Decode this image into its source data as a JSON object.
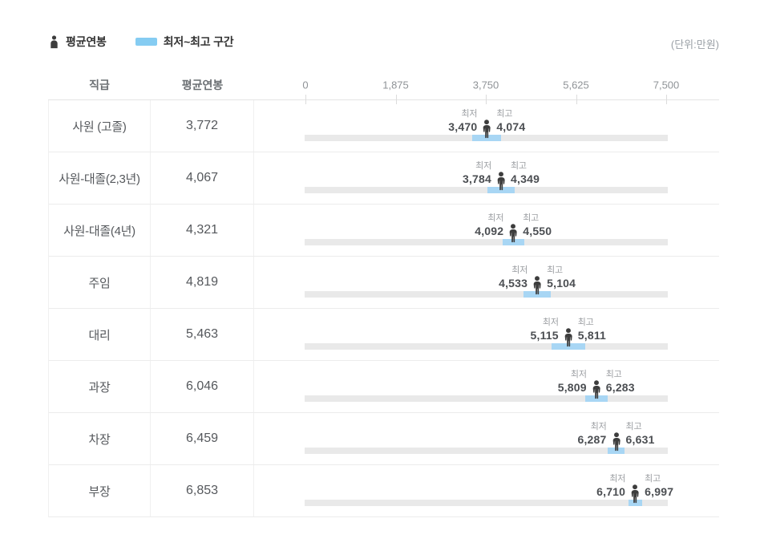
{
  "legend": {
    "avg_label": "평균연봉",
    "range_label": "최저~최고 구간"
  },
  "unit_note": "(단위:만원)",
  "table": {
    "col_position": "직급",
    "col_avg": "평균연봉",
    "min_label": "최저",
    "max_label": "최고"
  },
  "colors": {
    "legend_swatch": "#85ccf2",
    "range_fill": "#a8d6f4",
    "track": "#e9e9e9",
    "person": "#3d3d3d",
    "tick": "#dcdcdc"
  },
  "chart_data": {
    "type": "bar",
    "variant": "horizontal-range-bar-with-average-marker",
    "unit": "만원",
    "legend": [
      "평균연봉",
      "최저~최고 구간"
    ],
    "xlim": [
      0,
      7500
    ],
    "x_ticks": [
      0,
      1875,
      3750,
      5625,
      7500
    ],
    "grid": false,
    "categories": [
      "사원 (고졸)",
      "사원-대졸(2,3년)",
      "사원-대졸(4년)",
      "주임",
      "대리",
      "과장",
      "차장",
      "부장"
    ],
    "series": [
      {
        "name": "평균연봉",
        "values": [
          3772,
          4067,
          4321,
          4819,
          5463,
          6046,
          6459,
          6853
        ]
      },
      {
        "name": "최저",
        "values": [
          3470,
          3784,
          4092,
          4533,
          5115,
          5809,
          6287,
          6710
        ]
      },
      {
        "name": "최고",
        "values": [
          4074,
          4349,
          4550,
          5104,
          5811,
          6283,
          6631,
          6997
        ]
      }
    ]
  }
}
